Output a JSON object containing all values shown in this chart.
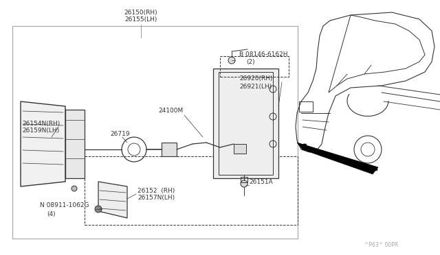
{
  "bg_color": "#ffffff",
  "line_color": "#333333",
  "box_color": "#999999",
  "watermark": "^P63^ 00PR",
  "font_size": 6.5,
  "font_size_wm": 6.0,
  "labels": {
    "top_part": "26150(RH)\n26155(LH)",
    "B_bolt": "B 08146-6162H\n  (2)",
    "wire": "24100M",
    "bracket": "26920(RH)\n26921(LH)",
    "lamp_body": "26154N(RH)\n26159N(LH)",
    "bulb": "26719",
    "screw_label": "26151A",
    "cover_label": "26152 (RH)\n26157N(LH)",
    "N_bolt": "N 08911-1062G\n   (4)"
  }
}
